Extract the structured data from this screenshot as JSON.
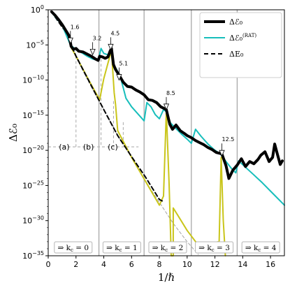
{
  "chart_data": {
    "type": "line",
    "title": "",
    "xlabel": "1/ℏ",
    "ylabel": "Δℰ₀",
    "xlim": [
      0,
      17
    ],
    "ylim_log10": [
      -35,
      0
    ],
    "yscale": "log",
    "grid": false,
    "legend_position": "top-right",
    "x_ticks": [
      0,
      2,
      4,
      6,
      8,
      10,
      12,
      14,
      16
    ],
    "y_ticks": [
      {
        "base": "10",
        "exp": "0",
        "value": 0
      },
      {
        "base": "10",
        "exp": "−5",
        "value": -5
      },
      {
        "base": "10",
        "exp": "−10",
        "value": -10
      },
      {
        "base": "10",
        "exp": "−15",
        "value": -15
      },
      {
        "base": "10",
        "exp": "−20",
        "value": -20
      },
      {
        "base": "10",
        "exp": "−25",
        "value": -25
      },
      {
        "base": "10",
        "exp": "−30",
        "value": -30
      },
      {
        "base": "10",
        "exp": "−35",
        "value": -35
      }
    ],
    "vertical_lines_x": [
      3.65,
      6.9,
      10.3,
      13.6
    ],
    "series": [
      {
        "name": "Δℰ₀",
        "color": "#000000",
        "style": "solid-thick",
        "x_unit": "1/ℏ",
        "points_log10": [
          [
            0.25,
            -0.3
          ],
          [
            0.5,
            -0.8
          ],
          [
            0.75,
            -1.4
          ],
          [
            1.0,
            -2.1
          ],
          [
            1.25,
            -2.9
          ],
          [
            1.5,
            -3.7
          ],
          [
            1.65,
            -5.2
          ],
          [
            1.8,
            -5.6
          ],
          [
            2.0,
            -5.5
          ],
          [
            2.2,
            -5.9
          ],
          [
            2.5,
            -6.0
          ],
          [
            2.8,
            -6.3
          ],
          [
            3.1,
            -6.6
          ],
          [
            3.4,
            -7.0
          ],
          [
            3.6,
            -7.2
          ],
          [
            3.7,
            -6.6
          ],
          [
            3.9,
            -6.7
          ],
          [
            4.1,
            -6.9
          ],
          [
            4.3,
            -6.7
          ],
          [
            4.45,
            -5.9
          ],
          [
            4.55,
            -5.5
          ],
          [
            4.7,
            -7.8
          ],
          [
            4.85,
            -8.5
          ],
          [
            5.1,
            -9.3
          ],
          [
            5.4,
            -10.3
          ],
          [
            5.7,
            -10.9
          ],
          [
            6.0,
            -11.0
          ],
          [
            6.3,
            -11.4
          ],
          [
            6.6,
            -11.7
          ],
          [
            6.9,
            -12.1
          ],
          [
            7.2,
            -12.8
          ],
          [
            7.5,
            -12.9
          ],
          [
            7.8,
            -13.2
          ],
          [
            8.1,
            -13.8
          ],
          [
            8.5,
            -14.2
          ],
          [
            8.75,
            -16.3
          ],
          [
            8.95,
            -17.0
          ],
          [
            9.2,
            -16.4
          ],
          [
            9.5,
            -17.2
          ],
          [
            9.8,
            -17.6
          ],
          [
            10.0,
            -17.9
          ],
          [
            10.3,
            -18.2
          ],
          [
            10.6,
            -18.6
          ],
          [
            10.9,
            -18.9
          ],
          [
            11.2,
            -19.2
          ],
          [
            11.5,
            -19.6
          ],
          [
            11.8,
            -19.9
          ],
          [
            12.1,
            -20.3
          ],
          [
            12.5,
            -20.5
          ],
          [
            12.8,
            -22.2
          ],
          [
            13.0,
            -24.0
          ],
          [
            13.3,
            -22.8
          ],
          [
            13.6,
            -22.1
          ],
          [
            13.9,
            -21.2
          ],
          [
            14.2,
            -22.3
          ],
          [
            14.5,
            -21.6
          ],
          [
            14.8,
            -21.9
          ],
          [
            15.1,
            -21.3
          ],
          [
            15.3,
            -20.7
          ],
          [
            15.6,
            -20.2
          ],
          [
            15.9,
            -21.6
          ],
          [
            16.15,
            -21.0
          ],
          [
            16.3,
            -19.1
          ],
          [
            16.5,
            -20.6
          ],
          [
            16.7,
            -22.0
          ],
          [
            16.85,
            -21.5
          ]
        ]
      },
      {
        "name": "Δℰ₀(RAT)",
        "color": "#17bebb",
        "style": "solid",
        "x_unit": "1/ℏ",
        "points_log10": [
          [
            0.3,
            -0.5
          ],
          [
            1.0,
            -2.2
          ],
          [
            1.6,
            -5.0
          ],
          [
            2.0,
            -5.7
          ],
          [
            2.4,
            -6.1
          ],
          [
            2.8,
            -6.6
          ],
          [
            3.2,
            -7.0
          ],
          [
            3.6,
            -7.2
          ],
          [
            3.8,
            -5.5
          ],
          [
            4.0,
            -6.2
          ],
          [
            4.3,
            -6.4
          ],
          [
            4.5,
            -5.6
          ],
          [
            4.7,
            -7.8
          ],
          [
            4.9,
            -8.4
          ],
          [
            5.2,
            -9.6
          ],
          [
            5.6,
            -12.6
          ],
          [
            6.0,
            -13.8
          ],
          [
            6.5,
            -14.9
          ],
          [
            6.9,
            -15.8
          ],
          [
            7.1,
            -13.2
          ],
          [
            7.4,
            -13.8
          ],
          [
            7.7,
            -14.9
          ],
          [
            8.0,
            -15.5
          ],
          [
            8.3,
            -14.2
          ],
          [
            8.5,
            -14.5
          ],
          [
            8.8,
            -16.1
          ],
          [
            9.2,
            -16.9
          ],
          [
            9.6,
            -17.7
          ],
          [
            10.0,
            -18.4
          ],
          [
            10.3,
            -19.0
          ],
          [
            10.6,
            -17.0
          ],
          [
            11.0,
            -18.0
          ],
          [
            11.5,
            -19.1
          ],
          [
            12.0,
            -20.0
          ],
          [
            12.4,
            -20.5
          ],
          [
            12.8,
            -21.6
          ],
          [
            13.2,
            -22.6
          ],
          [
            13.5,
            -23.2
          ],
          [
            13.7,
            -21.5
          ],
          [
            14.2,
            -22.4
          ],
          [
            14.8,
            -23.5
          ],
          [
            15.4,
            -24.6
          ],
          [
            16.0,
            -25.8
          ],
          [
            16.6,
            -27.0
          ],
          [
            17.0,
            -27.8
          ]
        ]
      },
      {
        "name": "ΔE₀",
        "color": "#000000",
        "style": "dashed",
        "x_unit": "1/ℏ",
        "points_log10": [
          [
            0.2,
            -0.2
          ],
          [
            1.2,
            -3.0
          ],
          [
            2.0,
            -6.6
          ],
          [
            3.0,
            -10.4
          ],
          [
            4.0,
            -14.2
          ],
          [
            5.0,
            -17.9
          ],
          [
            6.0,
            -20.9
          ],
          [
            7.0,
            -23.8
          ],
          [
            8.0,
            -27.0
          ],
          [
            8.3,
            -27.3
          ]
        ]
      },
      {
        "name": "",
        "color": "#c9c51a",
        "style": "solid",
        "x_unit": "1/ℏ",
        "points_log10": [
          [
            1.6,
            -5.2
          ],
          [
            2.0,
            -6.6
          ],
          [
            3.0,
            -10.3
          ],
          [
            3.7,
            -12.8
          ],
          [
            4.0,
            -9.8
          ],
          [
            4.3,
            -7.6
          ],
          [
            4.55,
            -5.8
          ],
          [
            4.75,
            -11.8
          ],
          [
            4.85,
            -13.5
          ],
          [
            5.0,
            -17.2
          ],
          [
            6.0,
            -21.0
          ],
          [
            7.0,
            -24.4
          ],
          [
            8.0,
            -27.8
          ],
          [
            8.3,
            -26.5
          ],
          [
            8.5,
            -14.4
          ],
          [
            8.7,
            -24.8
          ],
          [
            8.85,
            -35.0
          ],
          [
            9.0,
            -35.0
          ],
          [
            9.0,
            -28.2
          ],
          [
            9.5,
            -29.8
          ],
          [
            10.0,
            -31.4
          ],
          [
            10.8,
            -33.5
          ],
          [
            12.3,
            -33.0
          ],
          [
            12.45,
            -21.0
          ],
          [
            12.6,
            -30.0
          ],
          [
            12.75,
            -35.0
          ]
        ]
      },
      {
        "name": "",
        "color": "#a0a0a0",
        "style": "dashed-thin",
        "x_unit": "1/ℏ",
        "points_log10": [
          [
            1.6,
            -5.2
          ],
          [
            3.0,
            -10.6
          ],
          [
            4.0,
            -14.2
          ],
          [
            5.0,
            -17.9
          ],
          [
            6.0,
            -21.0
          ],
          [
            7.0,
            -24.4
          ],
          [
            8.0,
            -27.4
          ],
          [
            9.0,
            -30.4
          ],
          [
            10.0,
            -33.0
          ],
          [
            10.8,
            -34.8
          ]
        ]
      }
    ],
    "annotations": [
      {
        "text": "1.6",
        "x": 1.6,
        "y_log10": -5.0
      },
      {
        "text": "3.2",
        "x": 3.2,
        "y_log10": -6.6
      },
      {
        "text": "4.5",
        "x": 4.5,
        "y_log10": -5.9
      },
      {
        "text": "5.1",
        "x": 5.1,
        "y_log10": -10.2
      },
      {
        "text": "8.5",
        "x": 8.5,
        "y_log10": -14.4
      },
      {
        "text": "12.5",
        "x": 12.5,
        "y_log10": -21.0
      }
    ],
    "region_labels": [
      "(a)",
      "(b)",
      "(c)"
    ],
    "region_guides": {
      "horizontal_y_log10": -19.5,
      "horizontal_x_range": [
        0,
        6.5
      ],
      "vertical_x": [
        2.0,
        3.8,
        4.7,
        5.4
      ],
      "vertical_top_y_log10": [
        -6.6,
        -7.0,
        -13.0,
        -16.0
      ]
    },
    "kc_labels": [
      "⇒ k",
      "⇒ k",
      "⇒ k",
      "⇒ k",
      "⇒ k"
    ],
    "kc_values": [
      "0",
      "1",
      "2",
      "3",
      "4"
    ],
    "kc_subscript": "c",
    "kc_centers_x": [
      1.8,
      5.3,
      8.6,
      11.95,
      15.3
    ]
  }
}
